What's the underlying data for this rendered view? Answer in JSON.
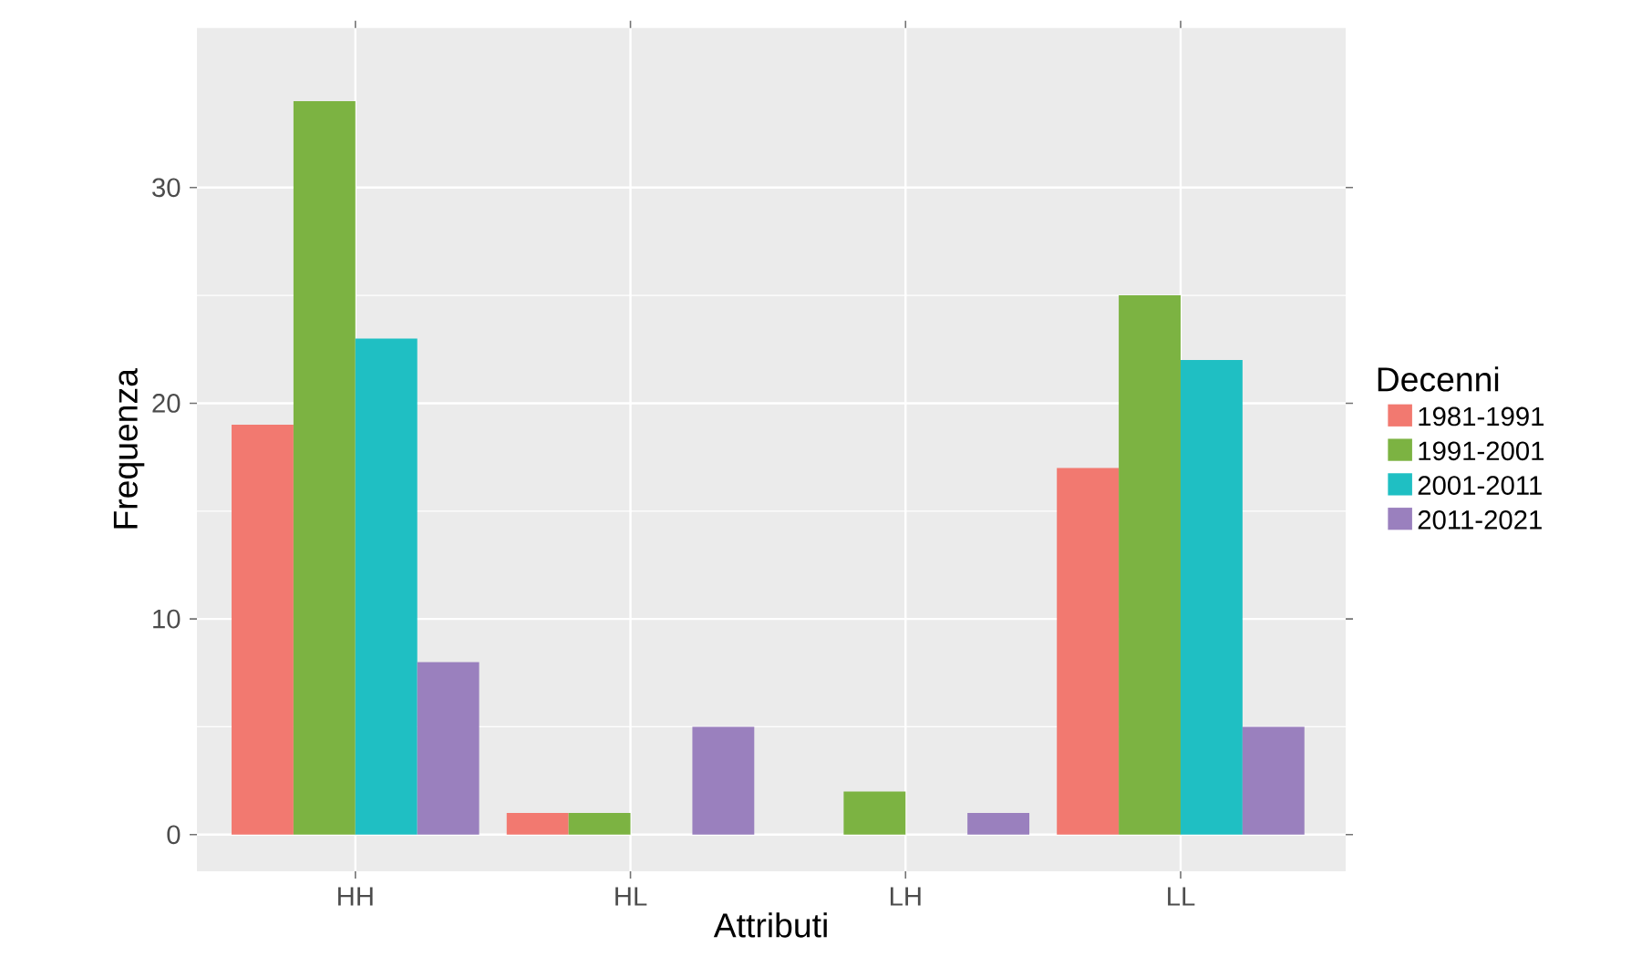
{
  "chart_data": {
    "type": "bar",
    "xlabel": "Attributi",
    "ylabel": "Frequenza",
    "legend_title": "Decenni",
    "categories": [
      "HH",
      "HL",
      "LH",
      "LL"
    ],
    "series": [
      {
        "name": "1981-1991",
        "color": "#f27970",
        "values": [
          19,
          1,
          null,
          17
        ]
      },
      {
        "name": "1991-2001",
        "color": "#7cb342",
        "values": [
          34,
          1,
          2,
          25
        ]
      },
      {
        "name": "2001-2011",
        "color": "#1fbfc3",
        "values": [
          23,
          null,
          null,
          22
        ]
      },
      {
        "name": "2011-2021",
        "color": "#9a80be",
        "values": [
          8,
          5,
          1,
          5
        ]
      }
    ],
    "ylim": [
      -1.7,
      37.4
    ],
    "yticks": [
      0,
      10,
      20,
      30
    ],
    "grid": true,
    "legend": "right"
  }
}
